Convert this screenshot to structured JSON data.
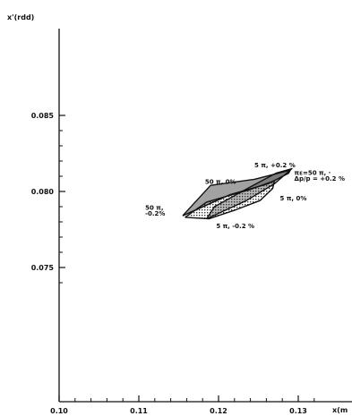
{
  "chart_data": {
    "type": "line",
    "title": "",
    "xlabel": "x(m",
    "ylabel": "x'(rdd)",
    "xlim": [
      0.1,
      0.133
    ],
    "ylim": [
      0.0732,
      0.0855
    ],
    "x_ticks": [
      0.1,
      0.11,
      0.12,
      0.13
    ],
    "x_tick_labels": [
      "0.10",
      "0.11",
      "0.12",
      "0.13"
    ],
    "y_ticks": [
      0.075,
      0.08,
      0.085
    ],
    "y_tick_labels": [
      "0.075",
      "0.080",
      "0.085"
    ],
    "grid": false,
    "series": [
      {
        "points": [
          {
            "x": 0.1155,
            "y": 0.0784
          },
          {
            "x": 0.1215,
            "y": 0.0798
          },
          {
            "x": 0.1262,
            "y": 0.0805
          },
          {
            "x": 0.1288,
            "y": 0.0812
          },
          {
            "x": 0.129,
            "y": 0.0814
          },
          {
            "x": 0.1245,
            "y": 0.0808
          },
          {
            "x": 0.119,
            "y": 0.0804
          },
          {
            "x": 0.1155,
            "y": 0.0784
          }
        ]
      },
      {
        "points": [
          {
            "x": 0.1158,
            "y": 0.0783
          },
          {
            "x": 0.1188,
            "y": 0.0782
          },
          {
            "x": 0.1222,
            "y": 0.0788
          },
          {
            "x": 0.1252,
            "y": 0.0794
          },
          {
            "x": 0.1268,
            "y": 0.0802
          },
          {
            "x": 0.127,
            "y": 0.0807
          },
          {
            "x": 0.1238,
            "y": 0.0801
          },
          {
            "x": 0.1185,
            "y": 0.0793
          },
          {
            "x": 0.1158,
            "y": 0.0783
          }
        ]
      },
      {
        "points": [
          {
            "x": 0.1185,
            "y": 0.0782
          },
          {
            "x": 0.1235,
            "y": 0.0794
          },
          {
            "x": 0.127,
            "y": 0.0805
          },
          {
            "x": 0.1292,
            "y": 0.0815
          },
          {
            "x": 0.1272,
            "y": 0.0812
          },
          {
            "x": 0.124,
            "y": 0.0803
          },
          {
            "x": 0.1195,
            "y": 0.079
          },
          {
            "x": 0.1185,
            "y": 0.0782
          }
        ]
      }
    ],
    "annotations": [
      {
        "text": "5 π, +0.2 %",
        "x": 0.1245,
        "y": 0.0816
      },
      {
        "text": "πε=50 π, ·",
        "x": 0.1295,
        "y": 0.0811
      },
      {
        "text": "Δp/p = +0.2 %",
        "x": 0.1295,
        "y": 0.0807
      },
      {
        "text": "50 π, 0%",
        "x": 0.1183,
        "y": 0.0805
      },
      {
        "text": "5 π, 0%",
        "x": 0.1277,
        "y": 0.0794
      },
      {
        "text": "50 π,",
        "x": 0.1108,
        "y": 0.0788
      },
      {
        "text": "-0.2%",
        "x": 0.1108,
        "y": 0.0784
      },
      {
        "text": "5 π, -0.2 %",
        "x": 0.1197,
        "y": 0.0776
      }
    ]
  }
}
